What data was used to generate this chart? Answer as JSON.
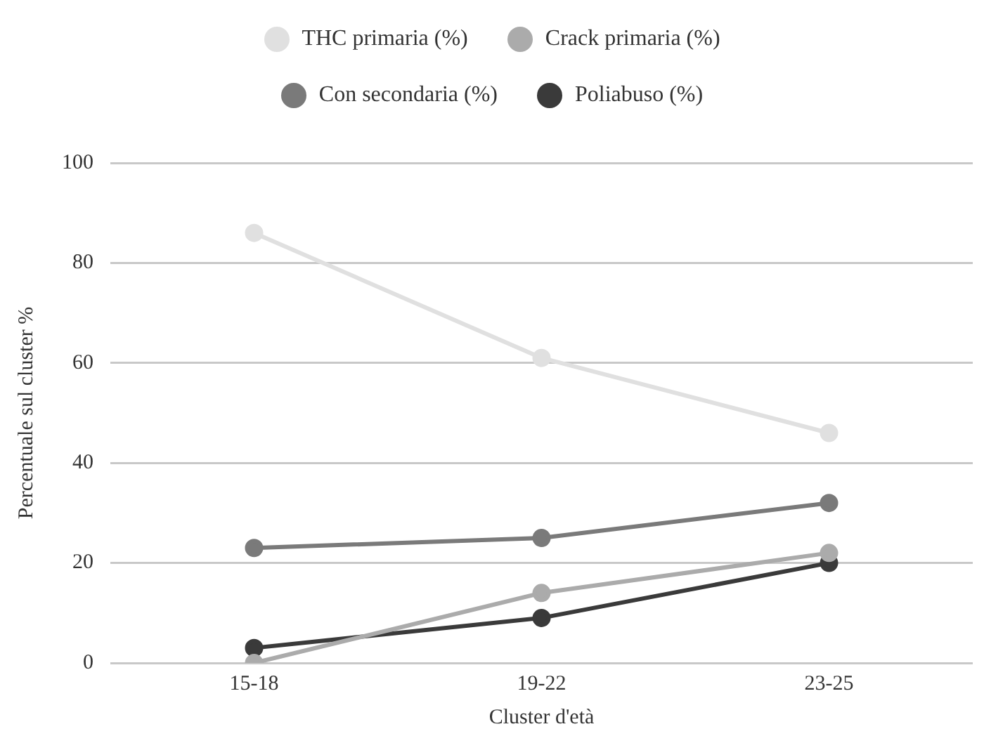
{
  "chart_data": {
    "type": "line",
    "xlabel": "Cluster d'età",
    "ylabel": "Percentuale sul cluster %",
    "categories": [
      "15-18",
      "19-22",
      "23-25"
    ],
    "series": [
      {
        "name": "THC primaria (%)",
        "color": "#e0e0e0",
        "values": [
          86,
          61,
          46
        ]
      },
      {
        "name": "Crack primaria (%)",
        "color": "#ababab",
        "values": [
          0,
          14,
          22
        ]
      },
      {
        "name": "Con secondaria (%)",
        "color": "#7a7a7a",
        "values": [
          23,
          25,
          32
        ]
      },
      {
        "name": "Poliabuso (%)",
        "color": "#3a3a3a",
        "values": [
          3,
          9,
          20
        ]
      }
    ],
    "ylim": [
      0,
      100
    ],
    "yticks": [
      0,
      20,
      40,
      60,
      80,
      100
    ],
    "grid": "y",
    "legend": "top",
    "marker": "circle",
    "line_style": "solid"
  }
}
